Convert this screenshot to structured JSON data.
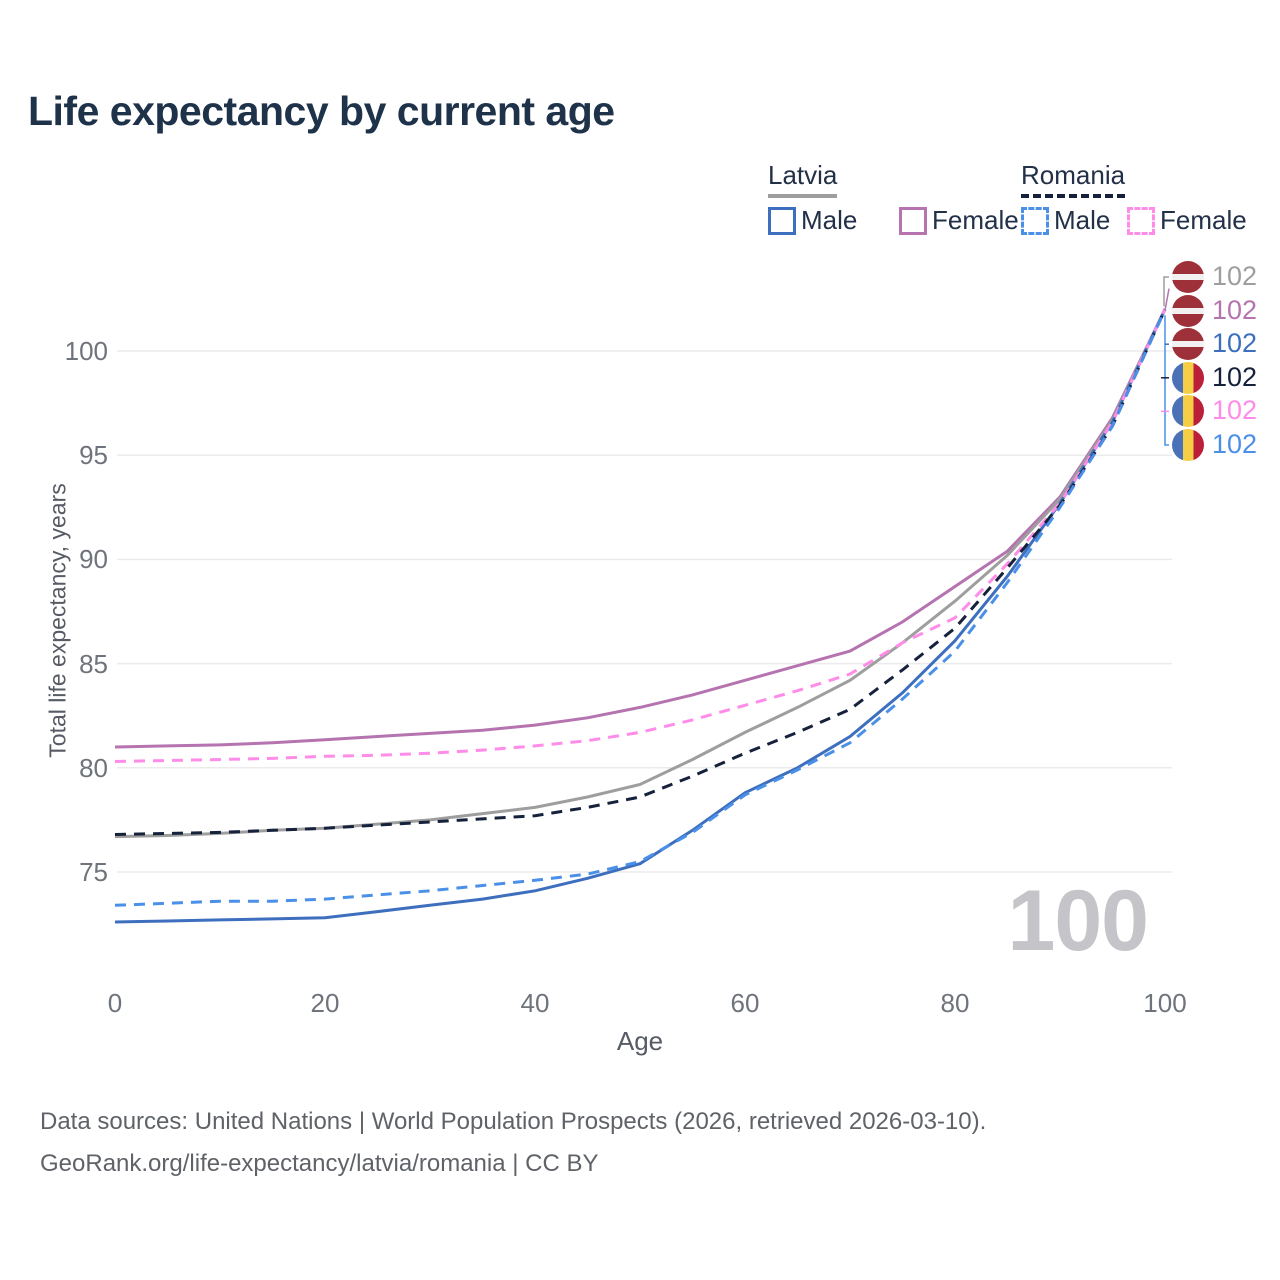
{
  "title": "Life expectancy by current age",
  "legend": {
    "latvia_label": "Latvia",
    "romania_label": "Romania",
    "latvia_male_label": "Male",
    "latvia_female_label": "Female",
    "romania_male_label": "Male",
    "romania_female_label": "Female"
  },
  "colors": {
    "latvia_male": "#3d6fbe",
    "latvia_female": "#b573b0",
    "latvia_total": "#9e9e9e",
    "romania_male": "#4a90e8",
    "romania_female": "#ff8ce8",
    "romania_total": "#16213c",
    "grid": "#ebebeb",
    "watermark": "#c5c5c9"
  },
  "chart_data": {
    "type": "line",
    "title": "Life expectancy by current age",
    "xlabel": "Age",
    "ylabel": "Total life expectancy, years",
    "x_ticks": [
      0,
      20,
      40,
      60,
      80,
      100
    ],
    "y_ticks": [
      75,
      80,
      85,
      90,
      95,
      100
    ],
    "xlim": [
      0,
      100
    ],
    "ylim": [
      71.5,
      104
    ],
    "grid": "horizontal",
    "legend_position": "top-right",
    "x": [
      0,
      5,
      10,
      15,
      20,
      25,
      30,
      35,
      40,
      45,
      50,
      55,
      60,
      65,
      70,
      75,
      80,
      85,
      90,
      95,
      100
    ],
    "series": [
      {
        "name": "Latvia Female",
        "country": "Latvia",
        "sex": "Female",
        "style": "solid",
        "color": "#b573b0",
        "values": [
          81.0,
          81.05,
          81.1,
          81.2,
          81.35,
          81.5,
          81.65,
          81.8,
          82.05,
          82.4,
          82.9,
          83.5,
          84.2,
          84.9,
          85.6,
          87.0,
          88.7,
          90.4,
          93.0,
          96.8,
          102
        ]
      },
      {
        "name": "Latvia",
        "country": "Latvia",
        "sex": "Total",
        "style": "solid",
        "color": "#9e9e9e",
        "values": [
          76.7,
          76.75,
          76.85,
          77.0,
          77.1,
          77.3,
          77.5,
          77.8,
          78.1,
          78.6,
          79.2,
          80.4,
          81.7,
          82.9,
          84.2,
          86.0,
          88.0,
          90.2,
          92.9,
          96.7,
          102
        ]
      },
      {
        "name": "Latvia Male",
        "country": "Latvia",
        "sex": "Male",
        "style": "solid",
        "color": "#3d6fbe",
        "values": [
          72.6,
          72.65,
          72.7,
          72.75,
          72.8,
          73.1,
          73.4,
          73.7,
          74.1,
          74.7,
          75.4,
          77.0,
          78.8,
          80.0,
          81.5,
          83.6,
          86.1,
          89.2,
          92.7,
          96.6,
          102
        ]
      },
      {
        "name": "Romania Female",
        "country": "Romania",
        "sex": "Female",
        "style": "dashed",
        "color": "#ff8ce8",
        "values": [
          80.3,
          80.35,
          80.4,
          80.45,
          80.55,
          80.6,
          80.7,
          80.85,
          81.05,
          81.3,
          81.7,
          82.3,
          83.0,
          83.7,
          84.5,
          86.0,
          87.2,
          89.8,
          92.7,
          96.6,
          102
        ]
      },
      {
        "name": "Romania",
        "country": "Romania",
        "sex": "Total",
        "style": "dashed",
        "color": "#16213c",
        "values": [
          76.8,
          76.85,
          76.9,
          77.0,
          77.1,
          77.25,
          77.4,
          77.55,
          77.7,
          78.1,
          78.6,
          79.6,
          80.7,
          81.7,
          82.8,
          84.7,
          86.7,
          89.6,
          92.6,
          96.4,
          102
        ]
      },
      {
        "name": "Romania Male",
        "country": "Romania",
        "sex": "Male",
        "style": "dashed",
        "color": "#4a90e8",
        "values": [
          73.4,
          73.5,
          73.6,
          73.6,
          73.7,
          73.9,
          74.1,
          74.35,
          74.6,
          74.9,
          75.5,
          76.9,
          78.7,
          79.9,
          81.2,
          83.3,
          85.6,
          88.9,
          92.5,
          96.4,
          102
        ]
      }
    ],
    "end_labels": [
      {
        "country": "Latvia",
        "series": "Latvia",
        "value": "102",
        "color": "#9e9e9e"
      },
      {
        "country": "Latvia",
        "series": "Latvia Female",
        "value": "102",
        "color": "#b573b0"
      },
      {
        "country": "Latvia",
        "series": "Latvia Male",
        "value": "102",
        "color": "#3d6fbe"
      },
      {
        "country": "Romania",
        "series": "Romania",
        "value": "102",
        "color": "#16213c"
      },
      {
        "country": "Romania",
        "series": "Romania Female",
        "value": "102",
        "color": "#ff8ce8"
      },
      {
        "country": "Romania",
        "series": "Romania Male",
        "value": "102",
        "color": "#4a90e8"
      }
    ],
    "age_indicator": "100"
  },
  "footer": {
    "line1": "Data sources: United Nations | World Population Prospects (2026, retrieved 2026-03-10).",
    "line2": "GeoRank.org/life-expectancy/latvia/romania | CC BY"
  }
}
